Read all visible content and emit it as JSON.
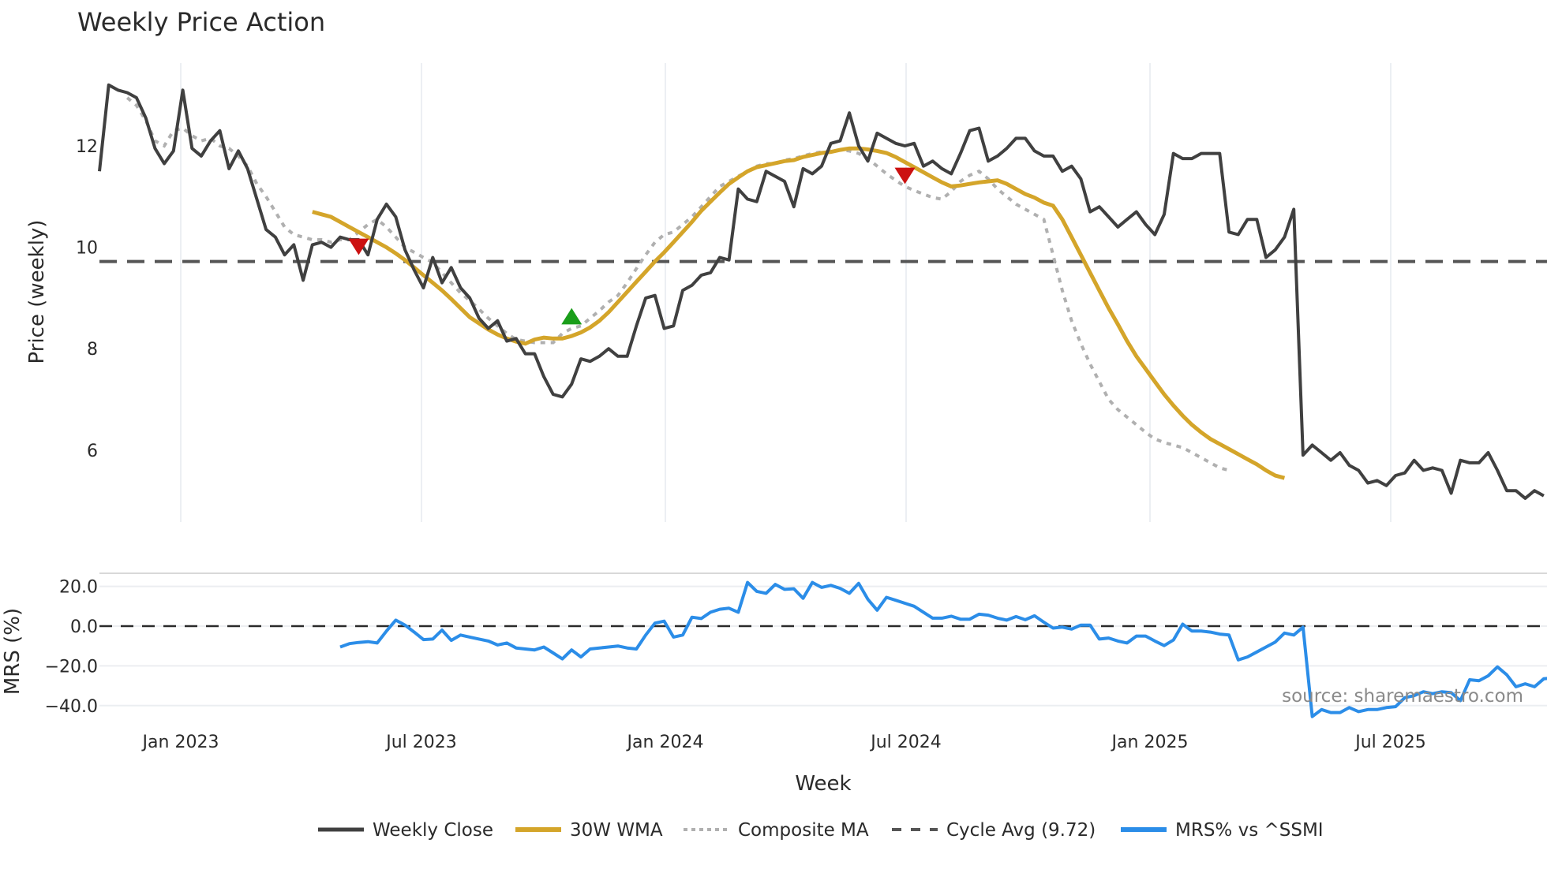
{
  "title": "Weekly Price Action",
  "source_label": "source: sharemaestro.com",
  "colors": {
    "weekly_close": "#404040",
    "wma": "#d4a52a",
    "composite": "#b0b0b0",
    "cycle": "#555555",
    "mrs": "#2b8de8",
    "buy_marker": "#1a9e1a",
    "sell_marker": "#cc1111",
    "grid": "#e6eaef"
  },
  "chart_data": [
    {
      "type": "line",
      "title": "Weekly Price Action",
      "xlabel": "Week",
      "ylabel": "Price (weekly)",
      "ylim": [
        4.95,
        13.6
      ],
      "yticks": [
        6,
        8,
        10,
        12
      ],
      "xticks": [
        "Jan 2023",
        "Jul 2023",
        "Jan 2024",
        "Jul 2024",
        "Jan 2025",
        "Jul 2025"
      ],
      "grid": "vertical",
      "legend_position": "bottom",
      "x_start": "Nov 2022 (weekly)",
      "x_end": "Nov 2025",
      "series": [
        {
          "name": "Weekly Close",
          "values": [
            11.5,
            13.2,
            13.1,
            13.05,
            12.95,
            12.55,
            11.95,
            11.65,
            11.9,
            13.1,
            11.95,
            11.8,
            12.1,
            12.3,
            11.55,
            11.9,
            11.55,
            10.95,
            10.35,
            10.2,
            9.85,
            10.05,
            9.35,
            10.05,
            10.1,
            10.0,
            10.2,
            10.15,
            10.15,
            9.85,
            10.55,
            10.85,
            10.6,
            9.95,
            9.55,
            9.2,
            9.8,
            9.3,
            9.6,
            9.2,
            9.0,
            8.6,
            8.4,
            8.55,
            8.15,
            8.2,
            7.9,
            7.9,
            7.45,
            7.1,
            7.05,
            7.3,
            7.8,
            7.75,
            7.85,
            8.0,
            7.85,
            7.85,
            8.45,
            9.0,
            9.05,
            8.4,
            8.45,
            9.15,
            9.25,
            9.45,
            9.5,
            9.8,
            9.75,
            11.15,
            10.95,
            10.9,
            11.5,
            11.4,
            11.3,
            10.8,
            11.55,
            11.45,
            11.6,
            12.05,
            12.1,
            12.65,
            12.0,
            11.7,
            12.25,
            12.15,
            12.05,
            12.0,
            12.05,
            11.6,
            11.7,
            11.55,
            11.45,
            11.85,
            12.3,
            12.35,
            11.7,
            11.8,
            11.95,
            12.15,
            12.15,
            11.9,
            11.8,
            11.8,
            11.5,
            11.6,
            11.35,
            10.7,
            10.8,
            10.6,
            10.4,
            10.55,
            10.7,
            10.45,
            10.25,
            10.65,
            11.85,
            11.75,
            11.75,
            11.85,
            11.85,
            11.85,
            10.3,
            10.25,
            10.55,
            10.55,
            9.8,
            9.95,
            10.2,
            10.75,
            5.9,
            6.1,
            5.95,
            5.8,
            5.95,
            5.7,
            5.6,
            5.35,
            5.4,
            5.3,
            5.5,
            5.55,
            5.8,
            5.6,
            5.65,
            5.6,
            5.15,
            5.8,
            5.75,
            5.75,
            5.95,
            5.6,
            5.2,
            5.2,
            5.05,
            5.2,
            5.1
          ]
        },
        {
          "name": "30W WMA",
          "start_index": 23,
          "values": [
            10.7,
            10.65,
            10.6,
            10.5,
            10.4,
            10.3,
            10.2,
            10.1,
            10.0,
            9.88,
            9.75,
            9.6,
            9.45,
            9.3,
            9.15,
            8.98,
            8.8,
            8.62,
            8.5,
            8.38,
            8.28,
            8.2,
            8.14,
            8.1,
            8.18,
            8.22,
            8.2,
            8.2,
            8.25,
            8.32,
            8.42,
            8.55,
            8.72,
            8.92,
            9.12,
            9.32,
            9.52,
            9.72,
            9.9,
            10.1,
            10.3,
            10.5,
            10.72,
            10.9,
            11.08,
            11.25,
            11.38,
            11.5,
            11.58,
            11.62,
            11.66,
            11.7,
            11.72,
            11.78,
            11.82,
            11.86,
            11.88,
            11.92,
            11.95,
            11.95,
            11.93,
            11.9,
            11.86,
            11.78,
            11.68,
            11.58,
            11.48,
            11.38,
            11.28,
            11.2,
            11.22,
            11.25,
            11.28,
            11.3,
            11.32,
            11.25,
            11.15,
            11.05,
            10.98,
            10.88,
            10.82,
            10.55,
            10.2,
            9.85,
            9.5,
            9.15,
            8.8,
            8.48,
            8.15,
            7.85,
            7.6,
            7.35,
            7.1,
            6.88,
            6.68,
            6.5,
            6.35,
            6.22,
            6.12,
            6.02,
            5.92,
            5.82,
            5.72,
            5.6,
            5.5,
            5.45
          ]
        },
        {
          "name": "Composite MA",
          "start_index": 3,
          "values": [
            12.95,
            12.8,
            12.5,
            12.1,
            12.0,
            12.3,
            12.35,
            12.2,
            12.1,
            12.15,
            12.0,
            11.95,
            11.8,
            11.6,
            11.25,
            11.0,
            10.7,
            10.4,
            10.25,
            10.2,
            10.15,
            10.15,
            10.1,
            10.15,
            10.15,
            10.3,
            10.45,
            10.55,
            10.4,
            10.2,
            10.0,
            9.9,
            9.8,
            9.7,
            9.5,
            9.3,
            9.1,
            8.95,
            8.78,
            8.6,
            8.45,
            8.3,
            8.18,
            8.15,
            8.12,
            8.12,
            8.12,
            8.3,
            8.4,
            8.45,
            8.6,
            8.75,
            8.92,
            9.05,
            9.3,
            9.58,
            9.85,
            10.1,
            10.25,
            10.3,
            10.45,
            10.6,
            10.8,
            11.0,
            11.2,
            11.3,
            11.4,
            11.5,
            11.6,
            11.65,
            11.65,
            11.72,
            11.75,
            11.8,
            11.85,
            11.88,
            11.9,
            11.92,
            11.9,
            11.85,
            11.75,
            11.6,
            11.45,
            11.32,
            11.2,
            11.12,
            11.05,
            10.98,
            10.95,
            11.1,
            11.3,
            11.42,
            11.5,
            11.35,
            11.15,
            11.0,
            10.85,
            10.75,
            10.65,
            10.55,
            9.85,
            9.15,
            8.55,
            8.1,
            7.7,
            7.35,
            7.0,
            6.8,
            6.65,
            6.5,
            6.35,
            6.22,
            6.15,
            6.1,
            6.05,
            5.95,
            5.85,
            5.75,
            5.65,
            5.6
          ]
        },
        {
          "name": "Cycle Avg (9.72)",
          "constant": 9.72
        }
      ],
      "markers": [
        {
          "type": "sell",
          "shape": "triangle-down",
          "index": 28,
          "value": 10.05
        },
        {
          "type": "buy",
          "shape": "triangle-up",
          "index": 51,
          "value": 8.6
        },
        {
          "type": "sell",
          "shape": "triangle-down",
          "index": 87,
          "value": 11.45
        }
      ]
    },
    {
      "type": "line",
      "xlabel": "Week",
      "ylabel": "MRS (%)",
      "ylim": [
        -48,
        27
      ],
      "yticks": [
        "20.0",
        "0.0",
        "−20.0",
        "−40.0"
      ],
      "zero_line": "dashed",
      "series": [
        {
          "name": "MRS% vs ^SSMI",
          "start_index": 26,
          "values": [
            -10.5,
            -8.8,
            -8.2,
            -7.8,
            -8.5,
            -2.5,
            3.0,
            0.5,
            -3.0,
            -6.8,
            -6.5,
            -2.0,
            -7.2,
            -4.5,
            -5.5,
            -6.5,
            -7.5,
            -9.5,
            -8.5,
            -11.0,
            -11.5,
            -12.0,
            -10.5,
            -13.5,
            -16.5,
            -12.0,
            -15.5,
            -11.5,
            -11.0,
            -10.5,
            -10.0,
            -11.0,
            -11.5,
            -4.5,
            1.5,
            2.5,
            -5.5,
            -4.5,
            4.5,
            3.8,
            7.0,
            8.5,
            9.0,
            7.0,
            22.0,
            17.5,
            16.5,
            21.0,
            18.5,
            18.8,
            14.0,
            22.0,
            19.5,
            20.5,
            19.0,
            16.5,
            21.5,
            13.5,
            8.0,
            14.5,
            13.0,
            11.5,
            10.0,
            7.0,
            4.0,
            4.0,
            5.0,
            3.5,
            3.5,
            6.0,
            5.5,
            4.0,
            3.0,
            4.8,
            3.2,
            5.2,
            2.0,
            -1.0,
            -0.5,
            -1.5,
            0.5,
            0.5,
            -6.5,
            -6.0,
            -7.5,
            -8.5,
            -5.0,
            -5.0,
            -7.5,
            -9.8,
            -7.0,
            1.0,
            -2.5,
            -2.5,
            -3.0,
            -4.0,
            -4.5,
            -17.0,
            -15.5,
            -13.0,
            -10.5,
            -8.0,
            -3.5,
            -4.5,
            -0.5,
            -45.5,
            -42.0,
            -43.5,
            -43.5,
            -41.0,
            -43.0,
            -42.0,
            -42.0,
            -41.0,
            -40.5,
            -36.0,
            -35.0,
            -33.0,
            -34.0,
            -33.0,
            -33.5,
            -37.5,
            -27.0,
            -27.5,
            -25.0,
            -20.5,
            -24.5,
            -30.5,
            -29.0,
            -30.5,
            -26.5,
            -26.0
          ]
        }
      ]
    }
  ],
  "legend": [
    {
      "label": "Weekly Close",
      "style": "solid"
    },
    {
      "label": "30W WMA",
      "style": "solid"
    },
    {
      "label": "Composite MA",
      "style": "dotted"
    },
    {
      "label": "Cycle Avg (9.72)",
      "style": "dashed"
    },
    {
      "label": "MRS% vs ^SSMI",
      "style": "solid"
    }
  ]
}
